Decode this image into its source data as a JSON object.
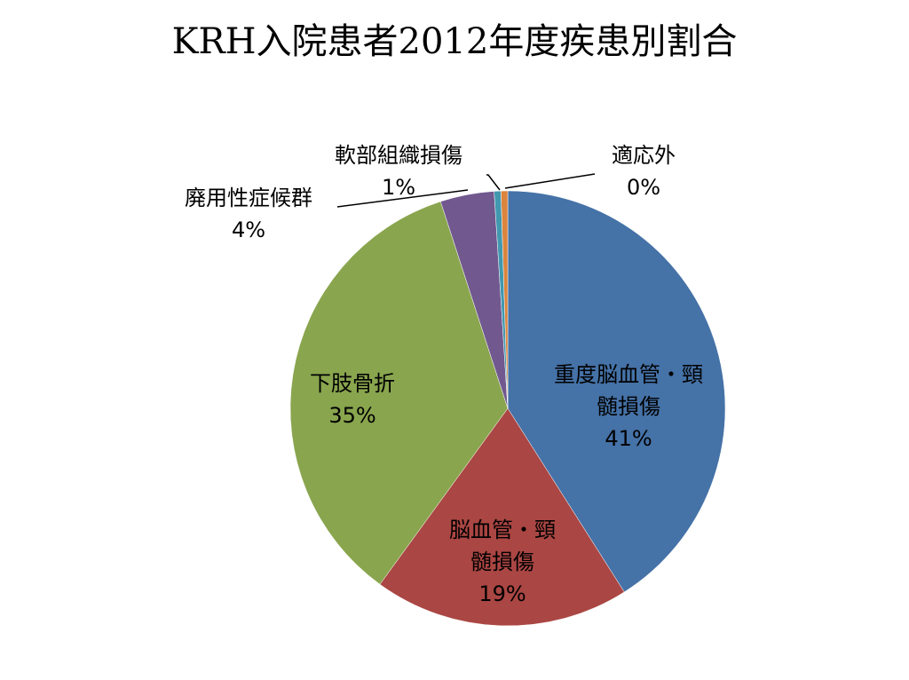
{
  "chart_data": {
    "type": "pie",
    "title": "KRH入院患者2012年度疾患別割合",
    "start_angle_deg": 0,
    "direction": "clockwise",
    "slices": [
      {
        "lines": [
          "重度脳血管・頸",
          "髄損傷"
        ],
        "value": 41,
        "pct_label": "41%",
        "color": "#4572A7"
      },
      {
        "lines": [
          "脳血管・頸",
          "髄損傷"
        ],
        "value": 19,
        "pct_label": "19%",
        "color": "#AA4643"
      },
      {
        "lines": [
          "下肢骨折"
        ],
        "value": 35,
        "pct_label": "35%",
        "color": "#89A54E"
      },
      {
        "lines": [
          "廃用性症候群"
        ],
        "value": 4,
        "pct_label": "4%",
        "color": "#71588F"
      },
      {
        "lines": [
          "軟部組織損傷"
        ],
        "value": 0.5,
        "pct_label": "1%",
        "color": "#4198AF"
      },
      {
        "lines": [
          "適応外"
        ],
        "value": 0.5,
        "pct_label": "0%",
        "color": "#DB843D"
      }
    ]
  }
}
